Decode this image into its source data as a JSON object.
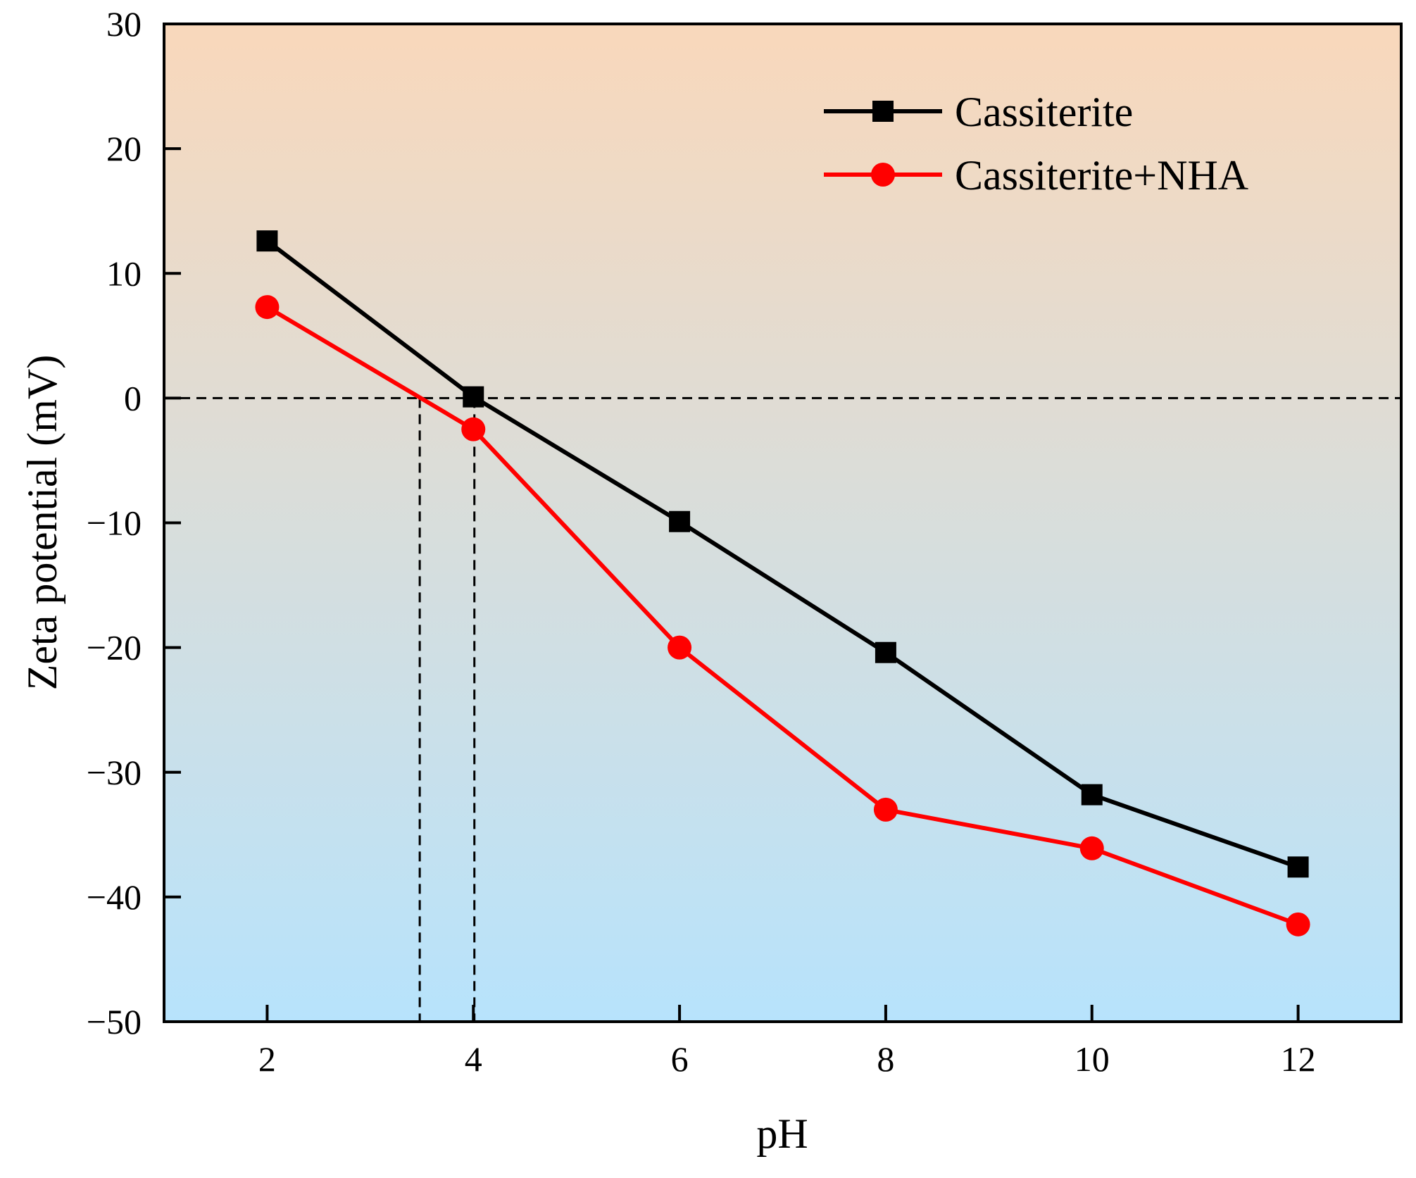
{
  "chart_data": {
    "type": "line",
    "title": "",
    "xlabel": "pH",
    "ylabel": "Zeta potential (mV)",
    "xlim": [
      1,
      13
    ],
    "ylim": [
      -50,
      30
    ],
    "xticks": [
      2,
      4,
      6,
      8,
      10,
      12
    ],
    "xtick_labels": [
      "2",
      "4",
      "6",
      "8",
      "10",
      "12"
    ],
    "yticks": [
      -50,
      -40,
      -30,
      -20,
      -10,
      0,
      10,
      20,
      30
    ],
    "ytick_labels": [
      "−50",
      "−40",
      "−30",
      "−20",
      "−10",
      "0",
      "10",
      "20",
      "30"
    ],
    "legend_position": "top-right",
    "background_gradient": {
      "top": "#f9d8bb",
      "bottom": "#b7e3fc"
    },
    "series": [
      {
        "name": "Cassiterite",
        "marker": "square",
        "color": "#000000",
        "x": [
          2,
          4,
          6,
          8,
          10,
          12
        ],
        "y": [
          12.6,
          0.1,
          -9.9,
          -20.4,
          -31.8,
          -37.6
        ]
      },
      {
        "name": "Cassiterite+NHA",
        "marker": "circle",
        "color": "#ff0000",
        "x": [
          2,
          4,
          6,
          8,
          10,
          12
        ],
        "y": [
          7.3,
          -2.5,
          -20.0,
          -33.0,
          -36.1,
          -42.2
        ]
      }
    ],
    "reference_lines": [
      {
        "orientation": "horizontal",
        "y": 0,
        "style": "dashed"
      },
      {
        "orientation": "vertical",
        "x": 3.48,
        "style": "dashed"
      },
      {
        "orientation": "vertical",
        "x": 4.01,
        "style": "dashed"
      }
    ]
  }
}
